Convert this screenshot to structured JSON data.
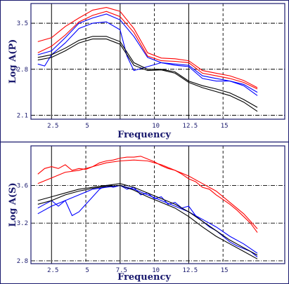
{
  "chart_data": [
    {
      "type": "line",
      "xlabel": "Frequency",
      "ylabel": "Log A(P)",
      "xlim": [
        1,
        19.5
      ],
      "ylim": [
        2.04,
        3.8
      ],
      "x_ticks": [
        2.5,
        5,
        10,
        12.5,
        15
      ],
      "x_tick_labels": [
        "2.5",
        "5",
        "10",
        "12.5",
        "15"
      ],
      "y_ticks": [
        2.1,
        2.8,
        3.5
      ],
      "y_tick_labels": [
        "2.1",
        "2.8",
        "3.5"
      ],
      "solid_vlines": [
        2.5,
        7.5,
        12.5
      ],
      "dashed_vlines": [
        5,
        10,
        15
      ],
      "grid": true,
      "series": [
        {
          "color": "#ff0000",
          "x": [
            1.5,
            2.5,
            3.5,
            4.5,
            5.5,
            6.5,
            7.5,
            8.5,
            9.5,
            10.5,
            11.5,
            12.5,
            13.5,
            14.5,
            15.5,
            16.5,
            17.5
          ],
          "y": [
            3.22,
            3.28,
            3.45,
            3.58,
            3.7,
            3.74,
            3.68,
            3.42,
            3.05,
            2.97,
            2.96,
            2.93,
            2.78,
            2.74,
            2.7,
            2.63,
            2.52
          ]
        },
        {
          "color": "#ff0000",
          "x": [
            1.5,
            2.5,
            3.5,
            4.5,
            5.5,
            6.5,
            7.5,
            8.5,
            9.5,
            10.5,
            11.5,
            12.5,
            13.5,
            14.5,
            15.5,
            16.5,
            17.5
          ],
          "y": [
            3.05,
            3.15,
            3.32,
            3.52,
            3.62,
            3.68,
            3.6,
            3.36,
            3.0,
            2.93,
            2.92,
            2.9,
            2.74,
            2.7,
            2.66,
            2.6,
            2.5
          ]
        },
        {
          "color": "#0000ff",
          "x": [
            1.5,
            2.5,
            3.5,
            4.5,
            5.5,
            6.5,
            7.5,
            8.5,
            9.5,
            10.5,
            11.5,
            12.5,
            13.5,
            14.5,
            15.5,
            16.5,
            17.5
          ],
          "y": [
            3.02,
            3.08,
            3.28,
            3.5,
            3.58,
            3.64,
            3.55,
            3.3,
            2.98,
            2.9,
            2.88,
            2.86,
            2.7,
            2.66,
            2.62,
            2.57,
            2.45
          ]
        },
        {
          "color": "#0000ff",
          "x": [
            1.5,
            2.0,
            2.5,
            3.5,
            4.5,
            5.5,
            6.5,
            7.5,
            8.0,
            8.5,
            9.5,
            10.5,
            11.5,
            12.5,
            13.5,
            14.5,
            15.5,
            16.5,
            17.5
          ],
          "y": [
            2.88,
            2.85,
            3.02,
            3.2,
            3.42,
            3.5,
            3.52,
            3.4,
            3.0,
            2.78,
            2.84,
            2.9,
            2.86,
            2.84,
            2.66,
            2.62,
            2.62,
            2.55,
            2.4
          ]
        },
        {
          "color": "#000000",
          "x": [
            1.5,
            2.5,
            3.5,
            4.5,
            5.5,
            6.5,
            7.5,
            8.5,
            9.5,
            10.5,
            11.5,
            12.5,
            13.5,
            14.5,
            15.5,
            16.5,
            17.5
          ],
          "y": [
            2.98,
            3.02,
            3.12,
            3.24,
            3.3,
            3.3,
            3.22,
            2.9,
            2.8,
            2.8,
            2.76,
            2.62,
            2.55,
            2.5,
            2.44,
            2.34,
            2.22
          ]
        },
        {
          "color": "#000000",
          "x": [
            1.5,
            2.5,
            3.5,
            4.5,
            5.5,
            6.5,
            7.5,
            8.5,
            9.5,
            10.5,
            11.5,
            12.5,
            13.5,
            14.5,
            15.5,
            16.5,
            17.5
          ],
          "y": [
            2.94,
            2.98,
            3.08,
            3.2,
            3.26,
            3.26,
            3.18,
            2.86,
            2.78,
            2.79,
            2.74,
            2.6,
            2.52,
            2.46,
            2.4,
            2.3,
            2.16
          ]
        }
      ]
    },
    {
      "type": "line",
      "xlabel": "Frequency",
      "ylabel": "Log A(S)",
      "xlim": [
        1,
        19.5
      ],
      "ylim": [
        2.77,
        4.02
      ],
      "x_ticks": [
        2.5,
        5,
        7.5,
        10,
        12.5,
        15
      ],
      "x_tick_labels": [
        "2.5",
        "5",
        "7.5",
        "10",
        "12.5",
        "15"
      ],
      "y_ticks": [
        2.8,
        3.2,
        3.6
      ],
      "y_tick_labels": [
        "2.8",
        "3.2",
        "3.6"
      ],
      "solid_vlines": [
        2.5,
        7.5,
        12.5
      ],
      "dashed_vlines": [
        5,
        10,
        15
      ],
      "grid": true,
      "series": [
        {
          "color": "#ff0000",
          "x": [
            1.5,
            2.0,
            2.5,
            3.0,
            3.5,
            4.0,
            4.5,
            5.0,
            5.5,
            6.0,
            6.5,
            7.0,
            7.5,
            8.0,
            8.5,
            9.0,
            9.5,
            10.0,
            10.5,
            11.0,
            11.5,
            12.0,
            12.5,
            13.0,
            13.5,
            14.0,
            14.5,
            15.0,
            15.5,
            16.0,
            16.5,
            17.0,
            17.5
          ],
          "y": [
            3.72,
            3.78,
            3.8,
            3.78,
            3.82,
            3.76,
            3.78,
            3.77,
            3.8,
            3.84,
            3.86,
            3.87,
            3.89,
            3.9,
            3.9,
            3.91,
            3.88,
            3.85,
            3.81,
            3.78,
            3.76,
            3.72,
            3.67,
            3.64,
            3.58,
            3.56,
            3.5,
            3.45,
            3.4,
            3.34,
            3.27,
            3.2,
            3.1
          ]
        },
        {
          "color": "#ff0000",
          "x": [
            1.5,
            2.5,
            3.5,
            4.5,
            5.5,
            6.5,
            7.5,
            8.5,
            9.5,
            10.5,
            11.5,
            12.5,
            13.5,
            14.5,
            15.5,
            16.5,
            17.5
          ],
          "y": [
            3.62,
            3.68,
            3.74,
            3.76,
            3.8,
            3.84,
            3.86,
            3.87,
            3.86,
            3.82,
            3.76,
            3.7,
            3.62,
            3.54,
            3.42,
            3.3,
            3.14
          ]
        },
        {
          "color": "#0000ff",
          "x": [
            1.5,
            2.0,
            2.5,
            3.0,
            3.5,
            4.0,
            4.5,
            5.0,
            5.5,
            6.0,
            6.5,
            7.0,
            7.5,
            8.0,
            8.5,
            9.0,
            9.5,
            10.0,
            10.5,
            11.0,
            11.5,
            12.0,
            12.5,
            13.0,
            13.5,
            14.0,
            14.5,
            15.0,
            15.5,
            16.0,
            16.5,
            17.0,
            17.5
          ],
          "y": [
            3.36,
            3.4,
            3.44,
            3.38,
            3.44,
            3.28,
            3.32,
            3.4,
            3.48,
            3.56,
            3.6,
            3.58,
            3.6,
            3.56,
            3.58,
            3.5,
            3.52,
            3.46,
            3.48,
            3.4,
            3.42,
            3.36,
            3.38,
            3.28,
            3.22,
            3.16,
            3.12,
            3.06,
            3.0,
            2.96,
            2.93,
            2.9,
            2.84
          ]
        },
        {
          "color": "#0000ff",
          "x": [
            1.5,
            2.5,
            3.5,
            4.5,
            5.5,
            6.5,
            7.5,
            8.5,
            9.5,
            10.5,
            11.5,
            12.5,
            13.5,
            14.5,
            15.5,
            16.5,
            17.5
          ],
          "y": [
            3.3,
            3.38,
            3.44,
            3.5,
            3.56,
            3.58,
            3.6,
            3.56,
            3.5,
            3.44,
            3.38,
            3.32,
            3.24,
            3.16,
            3.06,
            2.98,
            2.88
          ]
        },
        {
          "color": "#000000",
          "x": [
            1.5,
            2.5,
            3.5,
            4.5,
            5.5,
            6.5,
            7.5,
            8.5,
            9.5,
            10.5,
            11.5,
            12.5,
            13.5,
            14.5,
            15.5,
            16.5,
            17.5
          ],
          "y": [
            3.44,
            3.48,
            3.52,
            3.56,
            3.58,
            3.6,
            3.62,
            3.58,
            3.52,
            3.46,
            3.4,
            3.32,
            3.22,
            3.12,
            3.02,
            2.94,
            2.86
          ]
        },
        {
          "color": "#000000",
          "x": [
            1.5,
            2.5,
            3.5,
            4.5,
            5.5,
            6.5,
            7.5,
            8.5,
            9.5,
            10.5,
            11.5,
            12.5,
            13.5,
            14.5,
            15.5,
            16.5,
            17.5
          ],
          "y": [
            3.4,
            3.44,
            3.5,
            3.54,
            3.57,
            3.59,
            3.6,
            3.55,
            3.48,
            3.42,
            3.36,
            3.27,
            3.16,
            3.06,
            2.98,
            2.9,
            2.82
          ]
        }
      ]
    }
  ]
}
